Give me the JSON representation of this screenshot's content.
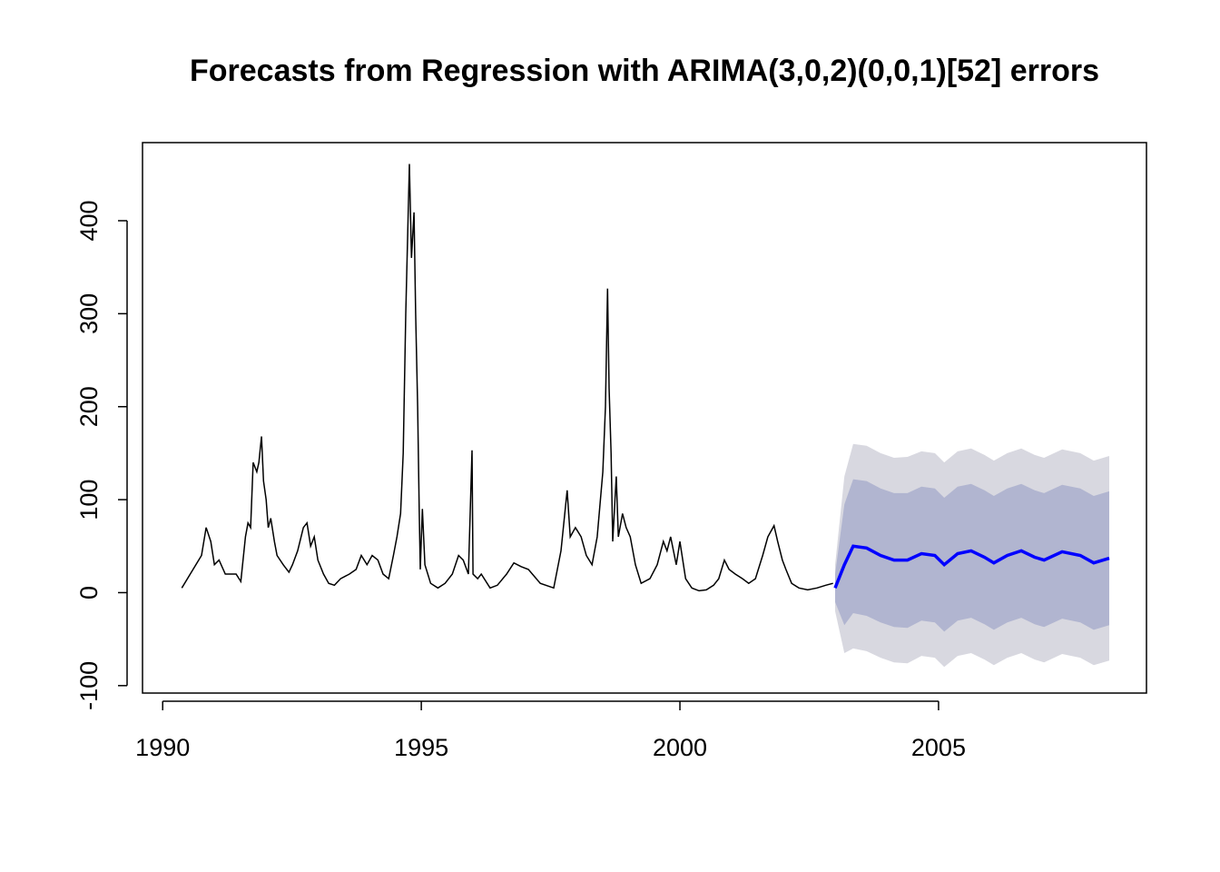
{
  "chart_data": {
    "type": "line",
    "title": "Forecasts from Regression with ARIMA(3,0,2)(0,0,1)[52] errors",
    "xlim": [
      1989.61,
      2009.02
    ],
    "ylim": [
      -108,
      484
    ],
    "xticks": [
      1990,
      1995,
      2000,
      2005
    ],
    "yticks": [
      -100,
      0,
      100,
      200,
      300,
      400
    ],
    "series": [
      {
        "color": "#000000",
        "x": [
          1990.37,
          1990.75,
          1990.84,
          1990.93,
          1991.0,
          1991.09,
          1991.21,
          1991.42,
          1991.51,
          1991.6,
          1991.65,
          1991.7,
          1991.75,
          1991.82,
          1991.86,
          1991.91,
          1991.95,
          1992.0,
          1992.04,
          1992.09,
          1992.16,
          1992.21,
          1992.33,
          1992.44,
          1992.51,
          1992.61,
          1992.72,
          1992.79,
          1992.86,
          1992.93,
          1993.0,
          1993.11,
          1993.21,
          1993.32,
          1993.44,
          1993.61,
          1993.74,
          1993.84,
          1993.95,
          1994.05,
          1994.16,
          1994.26,
          1994.37,
          1994.46,
          1994.53,
          1994.6,
          1994.65,
          1994.7,
          1994.77,
          1994.81,
          1994.86,
          1994.89,
          1994.93,
          1994.96,
          1994.98,
          1995.02,
          1995.07,
          1995.18,
          1995.32,
          1995.46,
          1995.6,
          1995.72,
          1995.81,
          1995.91,
          1995.98,
          1996.0,
          1996.09,
          1996.16,
          1996.33,
          1996.47,
          1996.65,
          1996.79,
          1996.93,
          1997.07,
          1997.3,
          1997.56,
          1997.7,
          1997.82,
          1997.88,
          1997.98,
          1998.09,
          1998.19,
          1998.3,
          1998.4,
          1998.51,
          1998.56,
          1998.6,
          1998.63,
          1998.67,
          1998.7,
          1998.77,
          1998.81,
          1998.89,
          1998.96,
          1999.04,
          1999.14,
          1999.25,
          1999.42,
          1999.56,
          1999.68,
          1999.75,
          1999.82,
          1999.93,
          2000.0,
          2000.11,
          2000.23,
          2000.37,
          2000.51,
          2000.65,
          2000.75,
          2000.86,
          2000.95,
          2001.07,
          2001.21,
          2001.33,
          2001.46,
          2001.6,
          2001.7,
          2001.82,
          2001.89,
          2001.98,
          2002.05,
          2002.16,
          2002.3,
          2002.47,
          2002.65,
          2002.82,
          2002.96
        ],
        "values": [
          5,
          40,
          70,
          55,
          30,
          35,
          20,
          20,
          12,
          60,
          75,
          70,
          140,
          130,
          140,
          168,
          120,
          100,
          70,
          80,
          55,
          40,
          30,
          22,
          30,
          45,
          70,
          75,
          50,
          60,
          35,
          20,
          10,
          8,
          15,
          20,
          25,
          40,
          30,
          40,
          35,
          20,
          15,
          40,
          60,
          85,
          150,
          300,
          461,
          360,
          409,
          300,
          200,
          90,
          25,
          90,
          30,
          10,
          5,
          10,
          20,
          40,
          35,
          20,
          153,
          20,
          15,
          20,
          5,
          8,
          20,
          32,
          28,
          25,
          10,
          5,
          45,
          110,
          60,
          70,
          60,
          40,
          30,
          60,
          130,
          200,
          327,
          220,
          150,
          55,
          125,
          60,
          85,
          70,
          60,
          30,
          10,
          15,
          30,
          55,
          45,
          60,
          30,
          55,
          15,
          5,
          2,
          3,
          8,
          15,
          35,
          25,
          20,
          15,
          10,
          15,
          40,
          60,
          72,
          55,
          35,
          25,
          10,
          5,
          3,
          5,
          8,
          10
        ]
      }
    ],
    "forecast": {
      "color": "#0000ff",
      "x": [
        2003.0,
        2003.18,
        2003.35,
        2003.61,
        2003.88,
        2004.14,
        2004.4,
        2004.67,
        2004.93,
        2005.11,
        2005.37,
        2005.63,
        2005.89,
        2006.07,
        2006.33,
        2006.6,
        2006.86,
        2007.04,
        2007.39,
        2007.74,
        2008.0,
        2008.3
      ],
      "values": [
        5,
        30,
        50,
        48,
        40,
        35,
        35,
        42,
        40,
        30,
        42,
        45,
        38,
        32,
        40,
        45,
        38,
        35,
        44,
        40,
        32,
        37
      ],
      "intervals": [
        {
          "color": "#d8d8e0",
          "lower": [
            -20,
            -65,
            -60,
            -63,
            -70,
            -75,
            -76,
            -68,
            -70,
            -80,
            -68,
            -65,
            -72,
            -78,
            -70,
            -65,
            -72,
            -75,
            -66,
            -70,
            -78,
            -73
          ],
          "upper": [
            30,
            125,
            160,
            158,
            150,
            145,
            146,
            152,
            150,
            140,
            152,
            155,
            148,
            142,
            150,
            155,
            148,
            145,
            154,
            150,
            142,
            147
          ]
        },
        {
          "color": "#b1b5d0",
          "lower": [
            -10,
            -35,
            -22,
            -25,
            -32,
            -37,
            -38,
            -30,
            -32,
            -42,
            -30,
            -27,
            -34,
            -40,
            -32,
            -27,
            -34,
            -37,
            -28,
            -32,
            -40,
            -35
          ],
          "upper": [
            20,
            95,
            122,
            120,
            112,
            107,
            107,
            114,
            112,
            102,
            114,
            117,
            110,
            104,
            112,
            117,
            110,
            107,
            116,
            112,
            104,
            109
          ]
        }
      ]
    }
  }
}
